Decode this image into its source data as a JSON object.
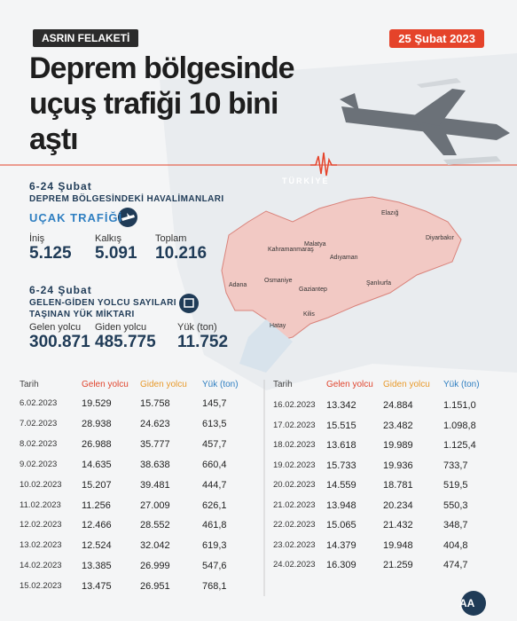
{
  "header": {
    "badge": "ASRIN FELAKETİ",
    "date": "25 Şubat 2023",
    "title_lines": [
      "Deprem bölgesinde",
      "uçuş trafiği 10 bini",
      "aştı"
    ]
  },
  "map": {
    "country": "TÜRKİYE",
    "cities": [
      "Malatya",
      "Elazığ",
      "Diyarbakır",
      "Kahramanmaraş",
      "Adıyaman",
      "Osmaniye",
      "Adana",
      "Gaziantep",
      "Şanlıurfa",
      "Kilis",
      "Hatay"
    ]
  },
  "flights": {
    "period": "6-24 Şubat",
    "subtitle": "DEPREM BÖLGESİNDEKİ HAVALİMANLARI",
    "heading": "UÇAK TRAFİĞİ",
    "stats": [
      {
        "label": "İniş",
        "value": "5.125"
      },
      {
        "label": "Kalkış",
        "value": "5.091"
      },
      {
        "label": "Toplam",
        "value": "10.216"
      }
    ]
  },
  "passengers": {
    "period": "6-24 Şubat",
    "subtitle_lines": [
      "GELEN-GİDEN YOLCU SAYILARI",
      "TAŞINAN YÜK MİKTARI"
    ],
    "stats": [
      {
        "label": "Gelen yolcu",
        "value": "300.871"
      },
      {
        "label": "Giden yolcu",
        "value": "485.775"
      },
      {
        "label": "Yük (ton)",
        "value": "11.752"
      }
    ]
  },
  "table": {
    "headers": [
      "Tarih",
      "Gelen yolcu",
      "Giden yolcu",
      "Yük (ton)"
    ],
    "rows": [
      [
        "6.02.2023",
        "19.529",
        "15.758",
        "145,7"
      ],
      [
        "7.02.2023",
        "28.938",
        "24.623",
        "613,5"
      ],
      [
        "8.02.2023",
        "26.988",
        "35.777",
        "457,7"
      ],
      [
        "9.02.2023",
        "14.635",
        "38.638",
        "660,4"
      ],
      [
        "10.02.2023",
        "15.207",
        "39.481",
        "444,7"
      ],
      [
        "11.02.2023",
        "11.256",
        "27.009",
        "626,1"
      ],
      [
        "12.02.2023",
        "12.466",
        "28.552",
        "461,8"
      ],
      [
        "13.02.2023",
        "12.524",
        "32.042",
        "619,3"
      ],
      [
        "14.02.2023",
        "13.385",
        "26.999",
        "547,6"
      ],
      [
        "15.02.2023",
        "13.475",
        "26.951",
        "768,1"
      ],
      [
        "16.02.2023",
        "13.342",
        "24.884",
        "1.151,0"
      ],
      [
        "17.02.2023",
        "15.515",
        "23.482",
        "1.098,8"
      ],
      [
        "18.02.2023",
        "13.618",
        "19.989",
        "1.125,4"
      ],
      [
        "19.02.2023",
        "15.733",
        "19.936",
        "733,7"
      ],
      [
        "20.02.2023",
        "14.559",
        "18.781",
        "519,5"
      ],
      [
        "21.02.2023",
        "13.948",
        "20.234",
        "550,3"
      ],
      [
        "22.02.2023",
        "15.065",
        "21.432",
        "348,7"
      ],
      [
        "23.02.2023",
        "14.379",
        "19.948",
        "404,8"
      ],
      [
        "24.02.2023",
        "16.309",
        "21.259",
        "474,7"
      ]
    ]
  },
  "footer": {
    "logo": "AA"
  }
}
